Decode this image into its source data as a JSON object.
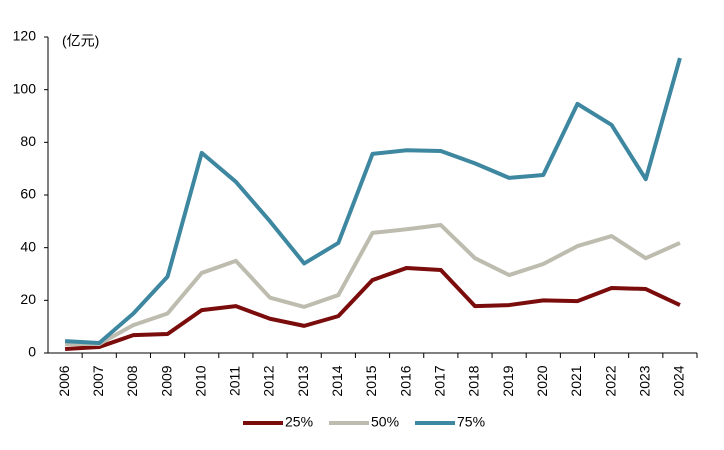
{
  "chart_data": {
    "type": "line",
    "unit_label": "(亿元)",
    "categories": [
      "2006",
      "2007",
      "2008",
      "2009",
      "2010",
      "2011",
      "2012",
      "2013",
      "2014",
      "2015",
      "2016",
      "2017",
      "2018",
      "2019",
      "2020",
      "2021",
      "2022",
      "2023",
      "2024"
    ],
    "series": [
      {
        "name": "25%",
        "color": "#7b0c0c",
        "values": [
          1.5,
          2.3,
          6.8,
          7.2,
          16.3,
          17.8,
          13,
          10.3,
          14,
          27.7,
          32.3,
          31.5,
          17.8,
          18.2,
          20,
          19.7,
          24.7,
          24.3,
          18.2
        ]
      },
      {
        "name": "50%",
        "color": "#bdbcaf",
        "values": [
          3.4,
          3.4,
          10.6,
          15,
          30.4,
          35,
          21,
          17.5,
          22,
          45.6,
          47,
          48.6,
          36,
          29.6,
          33.8,
          40.6,
          44.4,
          36,
          41.8
        ]
      },
      {
        "name": "75%",
        "color": "#3e87a0",
        "values": [
          4.5,
          3.8,
          15,
          29,
          76,
          65,
          50,
          34,
          41.8,
          75.6,
          77,
          76.7,
          72,
          66.5,
          67.6,
          94.6,
          86.6,
          66,
          112
        ]
      }
    ],
    "ylim": [
      0,
      120
    ],
    "yticks": [
      0,
      20,
      40,
      60,
      80,
      100,
      120
    ],
    "grid": false,
    "legend": "bottom"
  }
}
